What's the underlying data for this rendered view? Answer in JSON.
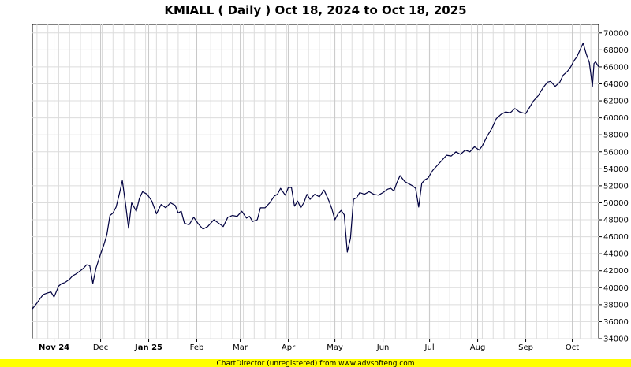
{
  "chart_data": {
    "type": "line",
    "title": "KMIALL ( Daily ) Oct 18, 2024 to Oct 18, 2025",
    "xlabel": "",
    "ylabel": "",
    "ylim": [
      34000,
      71000
    ],
    "y_ticks": [
      34000,
      36000,
      38000,
      40000,
      42000,
      44000,
      46000,
      48000,
      50000,
      52000,
      54000,
      56000,
      58000,
      60000,
      62000,
      64000,
      66000,
      68000,
      70000
    ],
    "x_range": [
      "2024-10-18",
      "2025-10-18"
    ],
    "x_ticks": [
      {
        "date": "2024-11-01",
        "label": "Nov 24",
        "bold": true
      },
      {
        "date": "2024-12-01",
        "label": "Dec",
        "bold": false
      },
      {
        "date": "2025-01-01",
        "label": "Jan 25",
        "bold": true
      },
      {
        "date": "2025-02-01",
        "label": "Feb",
        "bold": false
      },
      {
        "date": "2025-03-01",
        "label": "Mar",
        "bold": false
      },
      {
        "date": "2025-04-01",
        "label": "Apr",
        "bold": false
      },
      {
        "date": "2025-05-01",
        "label": "May",
        "bold": false
      },
      {
        "date": "2025-06-01",
        "label": "Jun",
        "bold": false
      },
      {
        "date": "2025-07-01",
        "label": "Jul",
        "bold": false
      },
      {
        "date": "2025-08-01",
        "label": "Aug",
        "bold": false
      },
      {
        "date": "2025-09-01",
        "label": "Sep",
        "bold": false
      },
      {
        "date": "2025-10-01",
        "label": "Oct",
        "bold": false
      }
    ],
    "grid": true,
    "line_color": "#000040",
    "series": [
      {
        "name": "",
        "points": [
          [
            "2024-10-18",
            37500
          ],
          [
            "2024-10-21",
            38200
          ],
          [
            "2024-10-23",
            38700
          ],
          [
            "2024-10-25",
            39200
          ],
          [
            "2024-10-28",
            39400
          ],
          [
            "2024-10-30",
            39500
          ],
          [
            "2024-11-01",
            38900
          ],
          [
            "2024-11-04",
            40200
          ],
          [
            "2024-11-06",
            40500
          ],
          [
            "2024-11-08",
            40600
          ],
          [
            "2024-11-11",
            41000
          ],
          [
            "2024-11-13",
            41400
          ],
          [
            "2024-11-15",
            41600
          ],
          [
            "2024-11-18",
            42000
          ],
          [
            "2024-11-20",
            42300
          ],
          [
            "2024-11-22",
            42700
          ],
          [
            "2024-11-24",
            42600
          ],
          [
            "2024-11-26",
            40500
          ],
          [
            "2024-11-28",
            42300
          ],
          [
            "2024-12-01",
            44000
          ],
          [
            "2024-12-03",
            45000
          ],
          [
            "2024-12-05",
            46200
          ],
          [
            "2024-12-07",
            48500
          ],
          [
            "2024-12-09",
            48800
          ],
          [
            "2024-12-11",
            49500
          ],
          [
            "2024-12-13",
            51000
          ],
          [
            "2024-12-15",
            52600
          ],
          [
            "2024-12-17",
            50000
          ],
          [
            "2024-12-19",
            47000
          ],
          [
            "2024-12-21",
            50000
          ],
          [
            "2024-12-24",
            49000
          ],
          [
            "2024-12-26",
            50500
          ],
          [
            "2024-12-28",
            51300
          ],
          [
            "2024-12-31",
            51000
          ],
          [
            "2025-01-03",
            50200
          ],
          [
            "2025-01-06",
            48700
          ],
          [
            "2025-01-09",
            49800
          ],
          [
            "2025-01-12",
            49400
          ],
          [
            "2025-01-15",
            50000
          ],
          [
            "2025-01-18",
            49700
          ],
          [
            "2025-01-20",
            48800
          ],
          [
            "2025-01-22",
            49000
          ],
          [
            "2025-01-24",
            47600
          ],
          [
            "2025-01-27",
            47400
          ],
          [
            "2025-01-30",
            48300
          ],
          [
            "2025-02-02",
            47500
          ],
          [
            "2025-02-05",
            46900
          ],
          [
            "2025-02-08",
            47200
          ],
          [
            "2025-02-12",
            48000
          ],
          [
            "2025-02-15",
            47600
          ],
          [
            "2025-02-18",
            47200
          ],
          [
            "2025-02-21",
            48300
          ],
          [
            "2025-02-24",
            48500
          ],
          [
            "2025-02-27",
            48400
          ],
          [
            "2025-03-02",
            49000
          ],
          [
            "2025-03-05",
            48200
          ],
          [
            "2025-03-07",
            48400
          ],
          [
            "2025-03-09",
            47800
          ],
          [
            "2025-03-12",
            48000
          ],
          [
            "2025-03-14",
            49400
          ],
          [
            "2025-03-17",
            49400
          ],
          [
            "2025-03-20",
            50000
          ],
          [
            "2025-03-23",
            50800
          ],
          [
            "2025-03-25",
            51000
          ],
          [
            "2025-03-27",
            51700
          ],
          [
            "2025-03-30",
            50900
          ],
          [
            "2025-04-01",
            51800
          ],
          [
            "2025-04-03",
            51800
          ],
          [
            "2025-04-05",
            49600
          ],
          [
            "2025-04-07",
            50200
          ],
          [
            "2025-04-09",
            49400
          ],
          [
            "2025-04-11",
            50000
          ],
          [
            "2025-04-13",
            51000
          ],
          [
            "2025-04-15",
            50400
          ],
          [
            "2025-04-18",
            51000
          ],
          [
            "2025-04-21",
            50700
          ],
          [
            "2025-04-24",
            51500
          ],
          [
            "2025-04-27",
            50300
          ],
          [
            "2025-04-29",
            49300
          ],
          [
            "2025-05-01",
            48000
          ],
          [
            "2025-05-03",
            48700
          ],
          [
            "2025-05-05",
            49100
          ],
          [
            "2025-05-07",
            48600
          ],
          [
            "2025-05-09",
            44200
          ],
          [
            "2025-05-11",
            45800
          ],
          [
            "2025-05-13",
            50400
          ],
          [
            "2025-05-15",
            50600
          ],
          [
            "2025-05-17",
            51200
          ],
          [
            "2025-05-20",
            51000
          ],
          [
            "2025-05-23",
            51300
          ],
          [
            "2025-05-26",
            51000
          ],
          [
            "2025-05-29",
            50900
          ],
          [
            "2025-06-01",
            51200
          ],
          [
            "2025-06-04",
            51600
          ],
          [
            "2025-06-06",
            51700
          ],
          [
            "2025-06-08",
            51400
          ],
          [
            "2025-06-10",
            52400
          ],
          [
            "2025-06-12",
            53200
          ],
          [
            "2025-06-15",
            52500
          ],
          [
            "2025-06-17",
            52300
          ],
          [
            "2025-06-20",
            52000
          ],
          [
            "2025-06-22",
            51700
          ],
          [
            "2025-06-24",
            49500
          ],
          [
            "2025-06-26",
            52300
          ],
          [
            "2025-06-28",
            52700
          ],
          [
            "2025-06-30",
            52900
          ],
          [
            "2025-07-03",
            53800
          ],
          [
            "2025-07-06",
            54400
          ],
          [
            "2025-07-09",
            55000
          ],
          [
            "2025-07-12",
            55600
          ],
          [
            "2025-07-15",
            55500
          ],
          [
            "2025-07-18",
            56000
          ],
          [
            "2025-07-21",
            55700
          ],
          [
            "2025-07-24",
            56200
          ],
          [
            "2025-07-27",
            56000
          ],
          [
            "2025-07-30",
            56600
          ],
          [
            "2025-08-02",
            56200
          ],
          [
            "2025-08-04",
            56700
          ],
          [
            "2025-08-07",
            57800
          ],
          [
            "2025-08-10",
            58700
          ],
          [
            "2025-08-13",
            59900
          ],
          [
            "2025-08-16",
            60400
          ],
          [
            "2025-08-19",
            60700
          ],
          [
            "2025-08-22",
            60600
          ],
          [
            "2025-08-25",
            61100
          ],
          [
            "2025-08-28",
            60700
          ],
          [
            "2025-08-30",
            60600
          ],
          [
            "2025-09-01",
            60500
          ],
          [
            "2025-09-03",
            61100
          ],
          [
            "2025-09-06",
            62000
          ],
          [
            "2025-09-09",
            62600
          ],
          [
            "2025-09-12",
            63500
          ],
          [
            "2025-09-15",
            64200
          ],
          [
            "2025-09-17",
            64300
          ],
          [
            "2025-09-20",
            63700
          ],
          [
            "2025-09-23",
            64200
          ],
          [
            "2025-09-25",
            65000
          ],
          [
            "2025-09-28",
            65500
          ],
          [
            "2025-09-30",
            66000
          ],
          [
            "2025-10-02",
            66700
          ],
          [
            "2025-10-04",
            67200
          ],
          [
            "2025-10-06",
            68000
          ],
          [
            "2025-10-08",
            68800
          ],
          [
            "2025-10-10",
            67500
          ],
          [
            "2025-10-12",
            66500
          ],
          [
            "2025-10-14",
            63700
          ],
          [
            "2025-10-15",
            66400
          ],
          [
            "2025-10-16",
            66600
          ],
          [
            "2025-10-18",
            66000
          ]
        ]
      }
    ]
  },
  "footer": {
    "text": "ChartDirector (unregistered) from www.advsofteng.com",
    "background": "#ffff00"
  }
}
